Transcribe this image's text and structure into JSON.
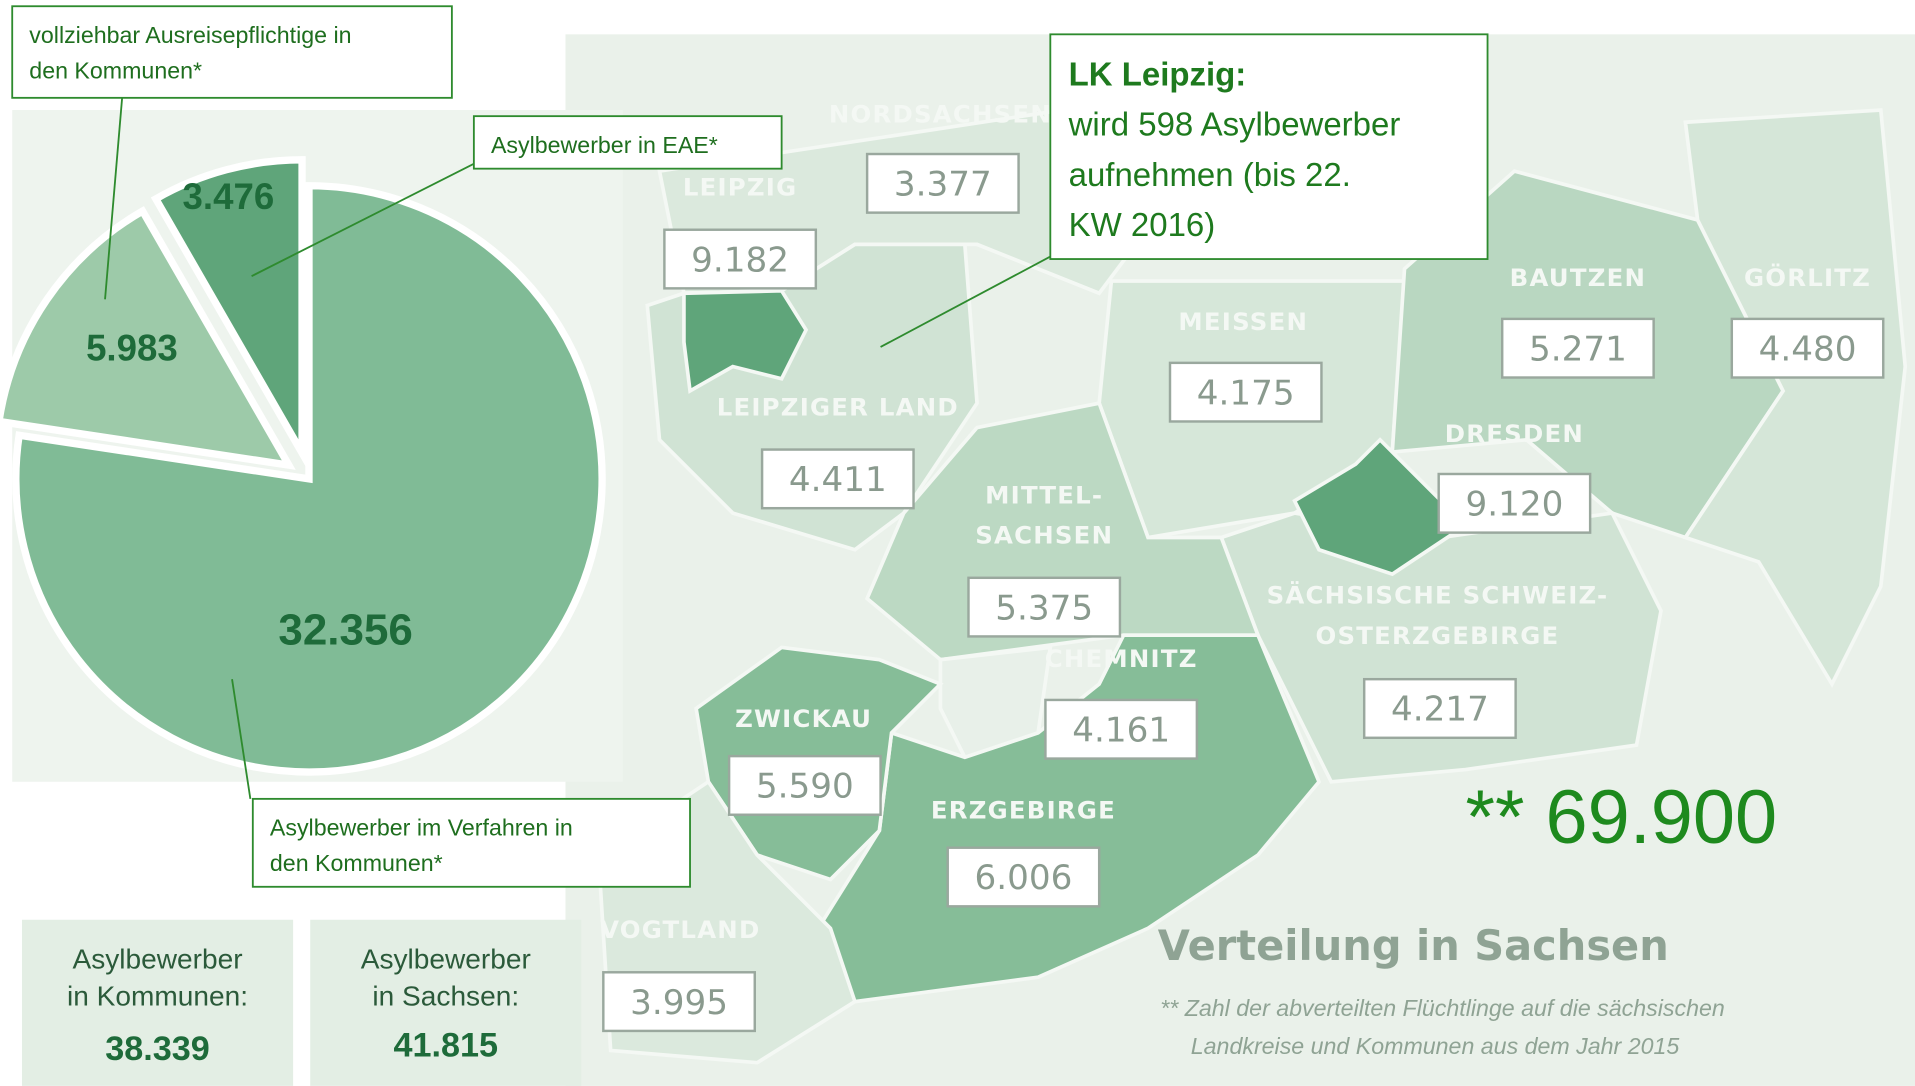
{
  "pie": {
    "slices": [
      {
        "value": 3476,
        "value_label": "3.476"
      },
      {
        "value": 5983,
        "value_label": "5.983"
      },
      {
        "value": 32356,
        "value_label": "32.356"
      }
    ],
    "callouts": [
      {
        "lines": [
          "vollziehbar Ausreisepflichtige  in",
          "den Kommunen*"
        ]
      },
      {
        "lines": [
          "Asylbewerber in EAE*"
        ]
      },
      {
        "lines": [
          "Asylbewerber im Verfahren in",
          "den Kommunen*"
        ]
      }
    ]
  },
  "totals": [
    {
      "lines": [
        "Asylbewerber",
        "in Kommunen:"
      ],
      "value": "38.339"
    },
    {
      "lines": [
        "Asylbewerber",
        "in Sachsen:"
      ],
      "value": "41.815"
    }
  ],
  "map": {
    "regions": [
      {
        "name": "NORDSACHSEN",
        "value": "3.377"
      },
      {
        "name": "LEIPZIG",
        "value": "9.182"
      },
      {
        "name": "LEIPZIGER LAND",
        "value": "4.411"
      },
      {
        "name": "MEISSEN",
        "value": "4.175"
      },
      {
        "name": "BAUTZEN",
        "value": "5.271"
      },
      {
        "name": "GÖRLITZ",
        "value": "4.480"
      },
      {
        "name": "DRESDEN",
        "value": "9.120"
      },
      {
        "name": [
          "MITTEL-",
          "SACHSEN"
        ],
        "value": "5.375"
      },
      {
        "name": "CHEMNITZ",
        "value": "4.161"
      },
      {
        "name": [
          "SÄCHSISCHE SCHWEIZ-",
          "OSTERZGEBIRGE"
        ],
        "value": "4.217"
      },
      {
        "name": "ZWICKAU",
        "value": "5.590"
      },
      {
        "name": "ERZGEBIRGE",
        "value": "6.006"
      },
      {
        "name": "VOGTLAND",
        "value": "3.995"
      }
    ],
    "title": "Verteilung in Sachsen",
    "footnote": [
      "** Zahl der abverteilten Flüchtlinge auf die sächsischen",
      "Landkreise und Kommunen aus dem Jahr 2015"
    ],
    "total": "** 69.900",
    "callout": {
      "title": "LK Leipzig:",
      "lines": [
        "wird 598 Asylbewerber",
        "aufnehmen (bis 22.",
        "KW 2016)"
      ]
    }
  }
}
